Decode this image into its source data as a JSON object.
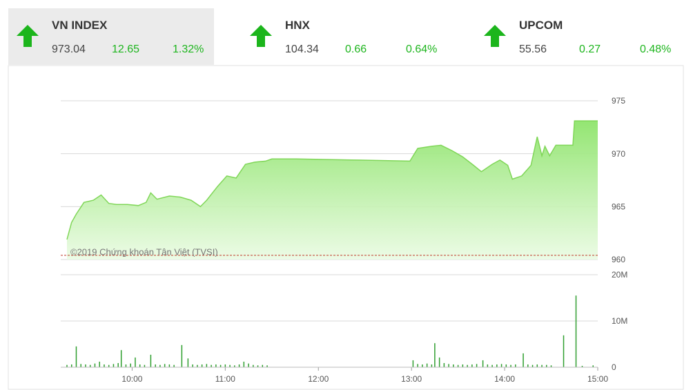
{
  "indices": [
    {
      "name": "VN INDEX",
      "value": "973.04",
      "change": "12.65",
      "percent": "1.32%"
    },
    {
      "name": "HNX",
      "value": "104.34",
      "change": "0.66",
      "percent": "0.64%"
    },
    {
      "name": "UPCOM",
      "value": "55.56",
      "change": "0.27",
      "percent": "0.48%"
    }
  ],
  "chart_data": [
    {
      "type": "area",
      "watermark": "©2019 Chứng khoán Tân Việt (TVSI)",
      "x": [
        558,
        561,
        564,
        569,
        575,
        580,
        585,
        590,
        597,
        604,
        609,
        612,
        616,
        624,
        631,
        638,
        644,
        648,
        655,
        661,
        667,
        673,
        679,
        686,
        690,
        706,
        746,
        779,
        784,
        793,
        799,
        806,
        813,
        820,
        825,
        832,
        837,
        842,
        845,
        851,
        857,
        861,
        864,
        866,
        869,
        873,
        884,
        885,
        900
      ],
      "values": [
        961.9,
        963.5,
        964.3,
        965.4,
        965.6,
        966.1,
        965.3,
        965.2,
        965.2,
        965.1,
        965.4,
        966.3,
        965.7,
        966.0,
        965.9,
        965.6,
        965.0,
        965.6,
        966.9,
        967.9,
        967.7,
        969.0,
        969.2,
        969.3,
        969.5,
        969.5,
        969.4,
        969.3,
        970.5,
        970.7,
        970.8,
        970.3,
        969.7,
        968.9,
        968.3,
        969.0,
        969.4,
        968.9,
        967.6,
        967.9,
        968.9,
        971.6,
        969.8,
        970.7,
        969.8,
        970.8,
        970.8,
        973.1,
        973.1
      ],
      "xlim": [
        554,
        900
      ],
      "ylim": [
        960,
        975
      ],
      "yticks": [
        960,
        965,
        970,
        975
      ],
      "reference": 960.4,
      "grid": true,
      "color": "#7fd657"
    },
    {
      "type": "bar",
      "x": [
        558,
        561,
        564,
        567,
        570,
        573,
        576,
        579,
        582,
        585,
        588,
        591,
        593,
        596,
        599,
        602,
        605,
        608,
        612,
        615,
        618,
        621,
        624,
        627,
        632,
        636,
        639,
        642,
        645,
        648,
        651,
        654,
        657,
        660,
        663,
        666,
        669,
        672,
        675,
        678,
        681,
        684,
        687,
        781,
        784,
        787,
        790,
        793,
        795,
        798,
        801,
        804,
        807,
        810,
        813,
        816,
        819,
        822,
        826,
        829,
        832,
        835,
        838,
        841,
        844,
        847,
        852,
        855,
        858,
        861,
        864,
        867,
        870,
        878,
        886,
        890,
        897
      ],
      "values": [
        500000,
        600000,
        4500000,
        700000,
        600000,
        500000,
        800000,
        1200000,
        600000,
        500000,
        700000,
        900000,
        3700000,
        600000,
        800000,
        2100000,
        600000,
        500000,
        2700000,
        600000,
        500000,
        700000,
        600000,
        500000,
        4800000,
        1900000,
        600000,
        500000,
        600000,
        700000,
        500000,
        600000,
        500000,
        600000,
        500000,
        400000,
        600000,
        1200000,
        800000,
        500000,
        400000,
        500000,
        400000,
        1500000,
        700000,
        600000,
        800000,
        600000,
        5200000,
        2100000,
        900000,
        700000,
        600000,
        500000,
        600000,
        500000,
        600000,
        700000,
        1500000,
        600000,
        500000,
        600000,
        700000,
        600000,
        500000,
        600000,
        3000000,
        600000,
        500000,
        600000,
        500000,
        500000,
        400000,
        6900000,
        15500000,
        300000,
        400000
      ],
      "xlim": [
        554,
        900
      ],
      "xticks": [
        {
          "value": 600,
          "label": "10:00"
        },
        {
          "value": 660,
          "label": "11:00"
        },
        {
          "value": 720,
          "label": "12:00"
        },
        {
          "value": 780,
          "label": "13:00"
        },
        {
          "value": 840,
          "label": "14:00"
        },
        {
          "value": 900,
          "label": "15:00"
        }
      ],
      "ylim": [
        0,
        20000000
      ],
      "yticks": [
        0,
        {
          "value": 10000000,
          "label": "10M"
        },
        {
          "value": 20000000,
          "label": "20M"
        }
      ],
      "grid": true,
      "color": "#2e9e2e"
    }
  ]
}
